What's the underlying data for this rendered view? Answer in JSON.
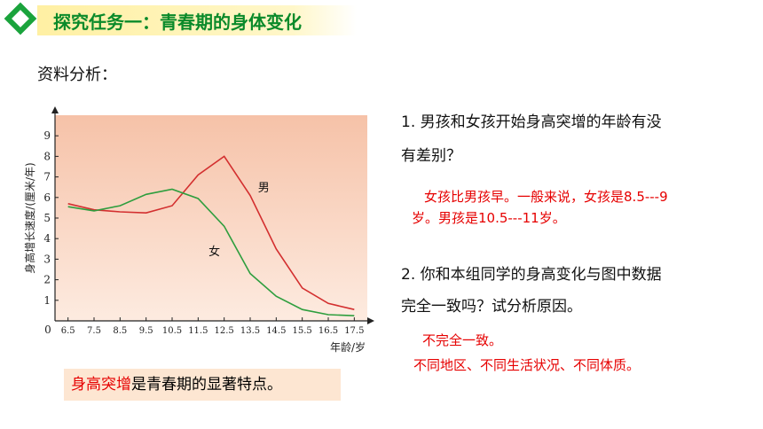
{
  "header": {
    "title": "探究任务一：青春期的身体变化"
  },
  "section_label": "资料分析：",
  "chart_data": {
    "type": "line",
    "ylabel": "身高增长速度/(厘米/年)",
    "xlabel": "年龄/岁",
    "x": [
      6.5,
      7.5,
      8.5,
      9.5,
      10.5,
      11.5,
      12.5,
      13.5,
      14.5,
      15.5,
      16.5,
      17.5
    ],
    "x_ticks": [
      "6.5",
      "7.5",
      "8.5",
      "9.5",
      "10.5",
      "11.5",
      "12.5",
      "13.5",
      "14.5",
      "15.5",
      "16.5",
      "17.5"
    ],
    "y_ticks": [
      "1",
      "2",
      "3",
      "4",
      "5",
      "6",
      "7",
      "8",
      "9"
    ],
    "origin_label": "0",
    "xlim": [
      6,
      18
    ],
    "ylim": [
      0,
      10
    ],
    "background": "#f8cdb4",
    "series": [
      {
        "name": "男",
        "color": "#d32f2f",
        "values": [
          5.7,
          5.4,
          5.3,
          5.25,
          5.6,
          7.1,
          8.0,
          6.1,
          3.5,
          1.6,
          0.85,
          0.55
        ]
      },
      {
        "name": "女",
        "color": "#2e9e3e",
        "values": [
          5.55,
          5.35,
          5.6,
          6.15,
          6.4,
          5.95,
          4.6,
          2.3,
          1.2,
          0.55,
          0.3,
          0.25
        ]
      }
    ]
  },
  "conclusion": {
    "highlight": "身高突增",
    "rest": "是青春期的显著特点。"
  },
  "questions": [
    {
      "lines": [
        "1. 男孩和女孩开始身高突增的年龄有没",
        "有差别？"
      ],
      "answer": [
        "女孩比男孩早。一般来说，女孩是8.5---9",
        "岁。男孩是10.5---11岁。"
      ]
    },
    {
      "lines": [
        "2. 你和本组同学的身高变化与图中数据",
        "完全一致吗？试分析原因。"
      ],
      "answer": [
        "不完全一致。",
        "不同地区、不同生活状况、不同体质。"
      ]
    }
  ]
}
